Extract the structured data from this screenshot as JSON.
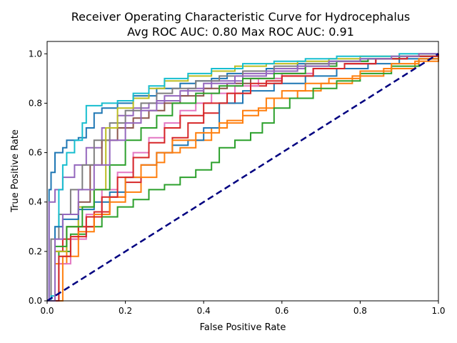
{
  "chart_data": {
    "type": "line",
    "title_line1": "Receiver Operating Characteristic Curve for Hydrocephalus",
    "title_line2": "Avg ROC AUC: 0.80  Max ROC AUC: 0.91",
    "xlabel": "False Positive Rate",
    "ylabel": "True Positive Rate",
    "xlim": [
      0.0,
      1.0
    ],
    "ylim": [
      0.0,
      1.05
    ],
    "xticks": [
      "0.0",
      "0.2",
      "0.4",
      "0.6",
      "0.8",
      "1.0"
    ],
    "yticks": [
      "0.0",
      "0.2",
      "0.4",
      "0.6",
      "0.8",
      "1.0"
    ],
    "grid": false,
    "reference_line": {
      "style": "dashed",
      "color": "#000080",
      "x": [
        0,
        1
      ],
      "y": [
        0,
        1
      ]
    },
    "series": [
      {
        "color": "#1f77b4",
        "x": [
          0,
          0.005,
          0.01,
          0.02,
          0.04,
          0.05,
          0.08,
          0.1,
          0.12,
          0.14,
          0.18,
          0.22,
          0.28,
          0.34,
          0.38,
          0.42,
          0.46,
          0.5,
          0.56,
          0.64,
          0.72,
          0.8,
          0.9,
          1.0
        ],
        "y": [
          0,
          0.45,
          0.52,
          0.6,
          0.62,
          0.65,
          0.66,
          0.7,
          0.76,
          0.78,
          0.8,
          0.83,
          0.86,
          0.88,
          0.89,
          0.9,
          0.92,
          0.93,
          0.94,
          0.96,
          0.97,
          0.98,
          0.99,
          1.0
        ]
      },
      {
        "color": "#ff7f0e",
        "x": [
          0,
          0.02,
          0.05,
          0.08,
          0.12,
          0.16,
          0.2,
          0.24,
          0.28,
          0.3,
          0.34,
          0.38,
          0.42,
          0.46,
          0.5,
          0.54,
          0.58,
          0.64,
          0.7,
          0.78,
          0.86,
          0.94,
          1.0
        ],
        "y": [
          0,
          0.15,
          0.25,
          0.3,
          0.35,
          0.4,
          0.44,
          0.5,
          0.56,
          0.6,
          0.62,
          0.65,
          0.7,
          0.73,
          0.75,
          0.78,
          0.82,
          0.85,
          0.88,
          0.91,
          0.94,
          0.97,
          1.0
        ]
      },
      {
        "color": "#2ca02c",
        "x": [
          0,
          0.03,
          0.06,
          0.1,
          0.14,
          0.18,
          0.22,
          0.26,
          0.3,
          0.34,
          0.38,
          0.42,
          0.44,
          0.48,
          0.52,
          0.55,
          0.58,
          0.62,
          0.68,
          0.74,
          0.8,
          0.88,
          0.95,
          1.0
        ],
        "y": [
          0,
          0.2,
          0.27,
          0.3,
          0.34,
          0.38,
          0.41,
          0.45,
          0.47,
          0.5,
          0.53,
          0.56,
          0.62,
          0.65,
          0.68,
          0.72,
          0.78,
          0.82,
          0.86,
          0.89,
          0.92,
          0.95,
          0.98,
          1.0
        ]
      },
      {
        "color": "#d62728",
        "x": [
          0,
          0.02,
          0.04,
          0.08,
          0.12,
          0.16,
          0.2,
          0.24,
          0.28,
          0.32,
          0.36,
          0.4,
          0.44,
          0.48,
          0.52,
          0.56,
          0.6,
          0.68,
          0.76,
          0.84,
          0.92,
          1.0
        ],
        "y": [
          0,
          0.2,
          0.25,
          0.3,
          0.36,
          0.42,
          0.48,
          0.55,
          0.6,
          0.66,
          0.72,
          0.76,
          0.8,
          0.84,
          0.87,
          0.89,
          0.91,
          0.94,
          0.96,
          0.98,
          0.99,
          1.0
        ]
      },
      {
        "color": "#9467bd",
        "x": [
          0,
          0.005,
          0.02,
          0.04,
          0.07,
          0.1,
          0.14,
          0.18,
          0.22,
          0.26,
          0.3,
          0.36,
          0.42,
          0.5,
          0.58,
          0.66,
          0.74,
          0.82,
          0.9,
          1.0
        ],
        "y": [
          0,
          0.4,
          0.45,
          0.5,
          0.55,
          0.62,
          0.7,
          0.75,
          0.78,
          0.8,
          0.83,
          0.86,
          0.89,
          0.92,
          0.94,
          0.96,
          0.97,
          0.98,
          0.99,
          1.0
        ]
      },
      {
        "color": "#8c564b",
        "x": [
          0,
          0.02,
          0.05,
          0.08,
          0.11,
          0.14,
          0.18,
          0.22,
          0.26,
          0.3,
          0.34,
          0.4,
          0.46,
          0.52,
          0.6,
          0.68,
          0.76,
          0.84,
          0.92,
          1.0
        ],
        "y": [
          0,
          0.2,
          0.3,
          0.4,
          0.55,
          0.65,
          0.7,
          0.74,
          0.77,
          0.8,
          0.83,
          0.86,
          0.88,
          0.9,
          0.92,
          0.94,
          0.96,
          0.98,
          0.99,
          1.0
        ]
      },
      {
        "color": "#e377c2",
        "x": [
          0,
          0.03,
          0.06,
          0.1,
          0.14,
          0.18,
          0.22,
          0.26,
          0.3,
          0.34,
          0.38,
          0.42,
          0.48,
          0.54,
          0.6,
          0.68,
          0.76,
          0.84,
          0.92,
          1.0
        ],
        "y": [
          0,
          0.15,
          0.25,
          0.35,
          0.45,
          0.52,
          0.6,
          0.66,
          0.72,
          0.77,
          0.8,
          0.84,
          0.87,
          0.9,
          0.92,
          0.94,
          0.96,
          0.98,
          0.99,
          1.0
        ]
      },
      {
        "color": "#7f7f7f",
        "x": [
          0,
          0.01,
          0.03,
          0.06,
          0.09,
          0.12,
          0.16,
          0.2,
          0.24,
          0.28,
          0.32,
          0.38,
          0.44,
          0.5,
          0.58,
          0.66,
          0.74,
          0.82,
          0.9,
          1.0
        ],
        "y": [
          0,
          0.25,
          0.35,
          0.45,
          0.55,
          0.65,
          0.72,
          0.77,
          0.8,
          0.84,
          0.86,
          0.89,
          0.91,
          0.93,
          0.95,
          0.96,
          0.97,
          0.98,
          0.99,
          1.0
        ]
      },
      {
        "color": "#bcbd22",
        "x": [
          0,
          0.02,
          0.05,
          0.08,
          0.12,
          0.15,
          0.18,
          0.22,
          0.26,
          0.3,
          0.36,
          0.42,
          0.48,
          0.56,
          0.64,
          0.72,
          0.8,
          0.88,
          0.95,
          1.0
        ],
        "y": [
          0,
          0.2,
          0.3,
          0.38,
          0.45,
          0.7,
          0.78,
          0.82,
          0.86,
          0.89,
          0.91,
          0.93,
          0.95,
          0.96,
          0.97,
          0.98,
          0.99,
          0.99,
          1.0,
          1.0
        ]
      },
      {
        "color": "#17becf",
        "x": [
          0,
          0.01,
          0.02,
          0.03,
          0.04,
          0.05,
          0.07,
          0.09,
          0.1,
          0.14,
          0.18,
          0.22,
          0.26,
          0.3,
          0.36,
          0.42,
          0.5,
          0.58,
          0.66,
          0.74,
          0.82,
          0.9,
          1.0
        ],
        "y": [
          0,
          0.02,
          0.3,
          0.45,
          0.55,
          0.6,
          0.65,
          0.72,
          0.79,
          0.8,
          0.81,
          0.84,
          0.87,
          0.9,
          0.92,
          0.94,
          0.96,
          0.97,
          0.98,
          0.99,
          0.99,
          1.0,
          1.0
        ]
      },
      {
        "color": "#1f77b4",
        "x": [
          0,
          0.02,
          0.04,
          0.08,
          0.12,
          0.16,
          0.2,
          0.24,
          0.28,
          0.32,
          0.36,
          0.4,
          0.44,
          0.5,
          0.58,
          0.66,
          0.74,
          0.82,
          0.9,
          1.0
        ],
        "y": [
          0,
          0.3,
          0.33,
          0.37,
          0.4,
          0.44,
          0.5,
          0.55,
          0.6,
          0.63,
          0.65,
          0.7,
          0.8,
          0.85,
          0.88,
          0.91,
          0.94,
          0.96,
          0.98,
          1.0
        ]
      },
      {
        "color": "#ff7f0e",
        "x": [
          0,
          0.04,
          0.08,
          0.12,
          0.16,
          0.2,
          0.24,
          0.28,
          0.32,
          0.38,
          0.44,
          0.5,
          0.56,
          0.6,
          0.66,
          0.72,
          0.8,
          0.88,
          0.95,
          1.0
        ],
        "y": [
          0,
          0.18,
          0.28,
          0.35,
          0.42,
          0.5,
          0.55,
          0.6,
          0.65,
          0.68,
          0.72,
          0.77,
          0.82,
          0.85,
          0.88,
          0.9,
          0.93,
          0.96,
          0.98,
          1.0
        ]
      },
      {
        "color": "#2ca02c",
        "x": [
          0,
          0.02,
          0.05,
          0.09,
          0.12,
          0.16,
          0.2,
          0.24,
          0.28,
          0.32,
          0.38,
          0.44,
          0.5,
          0.58,
          0.66,
          0.74,
          0.82,
          0.9,
          1.0
        ],
        "y": [
          0,
          0.22,
          0.3,
          0.38,
          0.45,
          0.55,
          0.65,
          0.7,
          0.75,
          0.8,
          0.84,
          0.87,
          0.9,
          0.92,
          0.95,
          0.97,
          0.98,
          0.99,
          1.0
        ]
      },
      {
        "color": "#d62728",
        "x": [
          0,
          0.03,
          0.06,
          0.1,
          0.14,
          0.18,
          0.22,
          0.26,
          0.3,
          0.34,
          0.4,
          0.46,
          0.52,
          0.6,
          0.68,
          0.76,
          0.84,
          0.92,
          1.0
        ],
        "y": [
          0,
          0.18,
          0.26,
          0.34,
          0.42,
          0.5,
          0.58,
          0.64,
          0.7,
          0.75,
          0.8,
          0.84,
          0.88,
          0.91,
          0.94,
          0.96,
          0.98,
          0.99,
          1.0
        ]
      },
      {
        "color": "#9467bd",
        "x": [
          0,
          0.02,
          0.04,
          0.08,
          0.12,
          0.16,
          0.2,
          0.24,
          0.28,
          0.34,
          0.4,
          0.48,
          0.56,
          0.64,
          0.72,
          0.8,
          0.88,
          0.95,
          1.0
        ],
        "y": [
          0,
          0.25,
          0.35,
          0.45,
          0.55,
          0.65,
          0.72,
          0.77,
          0.81,
          0.85,
          0.88,
          0.91,
          0.93,
          0.95,
          0.97,
          0.98,
          0.99,
          1.0,
          1.0
        ]
      }
    ]
  }
}
